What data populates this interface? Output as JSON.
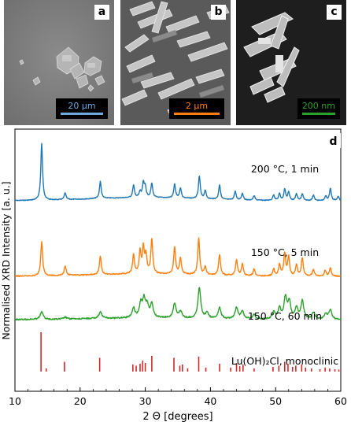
{
  "panels": [
    {
      "letter": "a",
      "scale_label": "20 µm",
      "scale_color": "#6fa8dc"
    },
    {
      "letter": "b",
      "scale_label": "2 µm",
      "scale_color": "#ff7f0e"
    },
    {
      "letter": "c",
      "scale_label": "200 nm",
      "scale_color": "#2ca02c"
    }
  ],
  "chart_data": {
    "type": "line",
    "panel_letter": "d",
    "xlabel": "2 Θ [degrees]",
    "ylabel": "Normalised XRD Intensity [a. u.]",
    "xlim": [
      10,
      60
    ],
    "xticks": [
      "10",
      "20",
      "30",
      "40",
      "50",
      "60"
    ],
    "grid": false,
    "series": [
      {
        "name": "200 °C, 1 min",
        "color": "#1f77b4",
        "peaks": [
          [
            14.1,
            100
          ],
          [
            17.7,
            12
          ],
          [
            23.1,
            30
          ],
          [
            28.2,
            22
          ],
          [
            29.2,
            10
          ],
          [
            29.7,
            25
          ],
          [
            30.0,
            18
          ],
          [
            31.0,
            25
          ],
          [
            34.5,
            24
          ],
          [
            35.4,
            18
          ],
          [
            38.3,
            40
          ],
          [
            39.2,
            15
          ],
          [
            41.4,
            26
          ],
          [
            43.8,
            15
          ],
          [
            44.9,
            12
          ],
          [
            46.7,
            8
          ],
          [
            49.7,
            10
          ],
          [
            50.6,
            12
          ],
          [
            51.4,
            20
          ],
          [
            52.0,
            15
          ],
          [
            53.2,
            12
          ],
          [
            54.1,
            12
          ],
          [
            55.8,
            10
          ],
          [
            57.7,
            8
          ],
          [
            58.4,
            22
          ],
          [
            59.6,
            8
          ]
        ]
      },
      {
        "name": "150 °C, 5 min",
        "color": "#ff7f0e",
        "peaks": [
          [
            14.1,
            75
          ],
          [
            17.7,
            22
          ],
          [
            23.1,
            40
          ],
          [
            28.2,
            42
          ],
          [
            29.2,
            48
          ],
          [
            29.7,
            55
          ],
          [
            30.1,
            40
          ],
          [
            31.0,
            75
          ],
          [
            34.5,
            60
          ],
          [
            35.4,
            35
          ],
          [
            38.2,
            80
          ],
          [
            39.2,
            18
          ],
          [
            41.4,
            45
          ],
          [
            44.0,
            35
          ],
          [
            44.9,
            25
          ],
          [
            46.7,
            15
          ],
          [
            49.7,
            15
          ],
          [
            50.6,
            25
          ],
          [
            51.4,
            50
          ],
          [
            52.0,
            42
          ],
          [
            53.2,
            25
          ],
          [
            54.1,
            40
          ],
          [
            55.8,
            15
          ],
          [
            57.6,
            12
          ],
          [
            58.4,
            18
          ]
        ]
      },
      {
        "name": "150 °C, 60 min",
        "color": "#2ca02c",
        "peaks": [
          [
            14.1,
            20
          ],
          [
            17.7,
            5
          ],
          [
            23.1,
            18
          ],
          [
            28.2,
            25
          ],
          [
            29.3,
            35
          ],
          [
            29.8,
            45
          ],
          [
            30.3,
            30
          ],
          [
            31.0,
            35
          ],
          [
            34.5,
            38
          ],
          [
            35.4,
            18
          ],
          [
            38.3,
            80
          ],
          [
            39.5,
            15
          ],
          [
            41.4,
            30
          ],
          [
            44.0,
            30
          ],
          [
            44.9,
            20
          ],
          [
            46.7,
            12
          ],
          [
            49.7,
            18
          ],
          [
            50.6,
            28
          ],
          [
            51.5,
            55
          ],
          [
            52.1,
            45
          ],
          [
            53.2,
            30
          ],
          [
            54.1,
            48
          ],
          [
            55.8,
            18
          ],
          [
            57.7,
            15
          ],
          [
            58.4,
            25
          ]
        ]
      },
      {
        "name": "Lu(OH)₂Cl, monoclinic",
        "color": "#d62728",
        "peaks": [
          [
            14.0,
            100
          ],
          [
            14.8,
            8
          ],
          [
            17.6,
            25
          ],
          [
            23.0,
            35
          ],
          [
            28.1,
            18
          ],
          [
            28.6,
            15
          ],
          [
            29.2,
            20
          ],
          [
            29.6,
            28
          ],
          [
            30.0,
            22
          ],
          [
            31.0,
            40
          ],
          [
            34.4,
            35
          ],
          [
            35.3,
            15
          ],
          [
            35.7,
            18
          ],
          [
            36.5,
            8
          ],
          [
            38.2,
            38
          ],
          [
            39.3,
            10
          ],
          [
            41.4,
            20
          ],
          [
            43.1,
            10
          ],
          [
            44.0,
            22
          ],
          [
            44.5,
            14
          ],
          [
            45.0,
            18
          ],
          [
            46.7,
            8
          ],
          [
            49.6,
            12
          ],
          [
            50.5,
            15
          ],
          [
            51.4,
            25
          ],
          [
            51.9,
            20
          ],
          [
            52.6,
            12
          ],
          [
            53.1,
            15
          ],
          [
            54.0,
            18
          ],
          [
            54.6,
            10
          ],
          [
            55.5,
            8
          ],
          [
            56.8,
            6
          ],
          [
            57.6,
            10
          ],
          [
            58.3,
            8
          ],
          [
            59.1,
            6
          ],
          [
            59.7,
            5
          ]
        ]
      }
    ]
  }
}
